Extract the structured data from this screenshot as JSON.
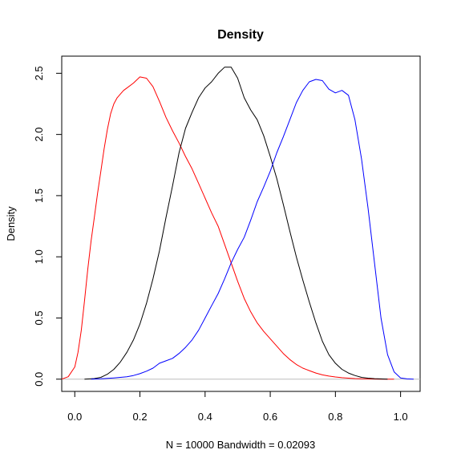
{
  "chart_data": {
    "type": "line",
    "title": "Density",
    "xlabel": "N = 10000   Bandwidth = 0.02093",
    "ylabel": "Density",
    "xlim": [
      -0.04,
      1.06
    ],
    "ylim": [
      -0.1,
      2.64
    ],
    "x_ticks": [
      0.0,
      0.2,
      0.4,
      0.6,
      0.8,
      1.0
    ],
    "x_tick_labels": [
      "0.0",
      "0.2",
      "0.4",
      "0.6",
      "0.8",
      "1.0"
    ],
    "y_ticks": [
      0.0,
      0.5,
      1.0,
      1.5,
      2.0,
      2.5
    ],
    "y_tick_labels": [
      "0.0",
      "0.5",
      "1.0",
      "1.5",
      "2.0",
      "2.5"
    ],
    "grid": false,
    "legend": "none",
    "baseline": {
      "y": 0,
      "color": "#bebebe"
    },
    "series": [
      {
        "color": "#ff0000",
        "x": [
          -0.04,
          -0.02,
          0.0,
          0.01,
          0.02,
          0.03,
          0.04,
          0.05,
          0.06,
          0.07,
          0.08,
          0.09,
          0.1,
          0.11,
          0.12,
          0.13,
          0.14,
          0.15,
          0.16,
          0.18,
          0.2,
          0.22,
          0.24,
          0.26,
          0.28,
          0.3,
          0.32,
          0.34,
          0.36,
          0.38,
          0.4,
          0.42,
          0.44,
          0.46,
          0.48,
          0.5,
          0.52,
          0.54,
          0.56,
          0.58,
          0.6,
          0.62,
          0.64,
          0.66,
          0.68,
          0.7,
          0.72,
          0.74,
          0.76,
          0.78,
          0.8,
          0.82,
          0.84,
          0.86,
          0.88,
          0.9,
          0.92,
          0.94,
          0.96,
          0.98
        ],
        "y": [
          0.0,
          0.02,
          0.1,
          0.22,
          0.4,
          0.64,
          0.9,
          1.13,
          1.32,
          1.52,
          1.7,
          1.88,
          2.04,
          2.17,
          2.25,
          2.3,
          2.33,
          2.36,
          2.38,
          2.42,
          2.47,
          2.46,
          2.39,
          2.27,
          2.14,
          2.03,
          1.93,
          1.82,
          1.72,
          1.6,
          1.48,
          1.36,
          1.25,
          1.1,
          0.95,
          0.8,
          0.66,
          0.55,
          0.46,
          0.39,
          0.33,
          0.27,
          0.21,
          0.16,
          0.12,
          0.09,
          0.07,
          0.05,
          0.035,
          0.025,
          0.018,
          0.012,
          0.008,
          0.005,
          0.003,
          0.002,
          0.001,
          0.0005,
          0.0002,
          0.0
        ]
      },
      {
        "color": "#000000",
        "x": [
          0.03,
          0.06,
          0.08,
          0.1,
          0.12,
          0.14,
          0.16,
          0.18,
          0.2,
          0.22,
          0.24,
          0.26,
          0.28,
          0.3,
          0.32,
          0.34,
          0.36,
          0.38,
          0.4,
          0.42,
          0.44,
          0.46,
          0.48,
          0.5,
          0.52,
          0.54,
          0.56,
          0.58,
          0.6,
          0.62,
          0.64,
          0.66,
          0.68,
          0.7,
          0.72,
          0.74,
          0.76,
          0.78,
          0.8,
          0.82,
          0.84,
          0.86,
          0.88,
          0.9,
          0.92,
          0.94,
          0.96
        ],
        "y": [
          0.0,
          0.005,
          0.015,
          0.04,
          0.08,
          0.14,
          0.22,
          0.32,
          0.45,
          0.62,
          0.82,
          1.05,
          1.32,
          1.58,
          1.85,
          2.05,
          2.18,
          2.3,
          2.38,
          2.43,
          2.5,
          2.55,
          2.55,
          2.46,
          2.3,
          2.2,
          2.12,
          1.99,
          1.82,
          1.64,
          1.43,
          1.21,
          1.0,
          0.81,
          0.63,
          0.46,
          0.31,
          0.2,
          0.13,
          0.08,
          0.05,
          0.03,
          0.015,
          0.008,
          0.004,
          0.002,
          0.0
        ]
      },
      {
        "color": "#0000ff",
        "x": [
          0.05,
          0.08,
          0.1,
          0.12,
          0.14,
          0.16,
          0.18,
          0.2,
          0.22,
          0.24,
          0.26,
          0.28,
          0.3,
          0.32,
          0.34,
          0.36,
          0.38,
          0.4,
          0.42,
          0.44,
          0.46,
          0.48,
          0.5,
          0.52,
          0.54,
          0.56,
          0.58,
          0.6,
          0.62,
          0.64,
          0.66,
          0.68,
          0.7,
          0.72,
          0.74,
          0.76,
          0.78,
          0.8,
          0.82,
          0.84,
          0.86,
          0.88,
          0.9,
          0.92,
          0.94,
          0.96,
          0.98,
          1.0,
          1.02,
          1.04
        ],
        "y": [
          0.0,
          0.003,
          0.006,
          0.01,
          0.015,
          0.02,
          0.03,
          0.045,
          0.065,
          0.09,
          0.13,
          0.15,
          0.17,
          0.21,
          0.26,
          0.32,
          0.4,
          0.5,
          0.6,
          0.7,
          0.82,
          0.95,
          1.06,
          1.16,
          1.3,
          1.45,
          1.57,
          1.7,
          1.85,
          1.98,
          2.12,
          2.26,
          2.36,
          2.43,
          2.45,
          2.44,
          2.37,
          2.34,
          2.36,
          2.32,
          2.12,
          1.8,
          1.4,
          0.95,
          0.5,
          0.2,
          0.06,
          0.01,
          0.002,
          0.0
        ]
      }
    ]
  }
}
